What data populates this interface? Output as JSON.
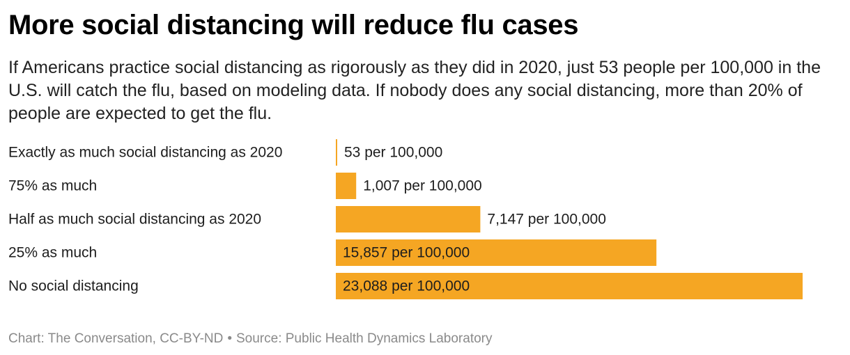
{
  "title": "More social distancing will reduce flu cases",
  "subtitle": "If Americans practice social distancing as rigorously as they did in 2020, just 53 people per 100,000 in the U.S. will catch the flu, based on modeling data. If nobody does any social distancing, more than 20% of people are expected to get the flu.",
  "chart_data": {
    "type": "bar",
    "orientation": "horizontal",
    "categories": [
      "Exactly as much social distancing as 2020",
      "75% as much",
      "Half as much social distancing as 2020",
      "25% as much",
      "No social distancing"
    ],
    "values": [
      53,
      1007,
      7147,
      15857,
      23088
    ],
    "value_labels": [
      "53 per 100,000",
      "1,007 per 100,000",
      "7,147 per 100,000",
      "15,857 per 100,000",
      "23,088 per 100,000"
    ],
    "xlim": [
      0,
      23088
    ],
    "grid": false,
    "bar_color": "#f5a623",
    "title": "",
    "xlabel": "",
    "ylabel": ""
  },
  "footer": {
    "credit": "Chart: The Conversation, CC-BY-ND",
    "separator": "•",
    "source": "Source: Public Health Dynamics Laboratory"
  }
}
